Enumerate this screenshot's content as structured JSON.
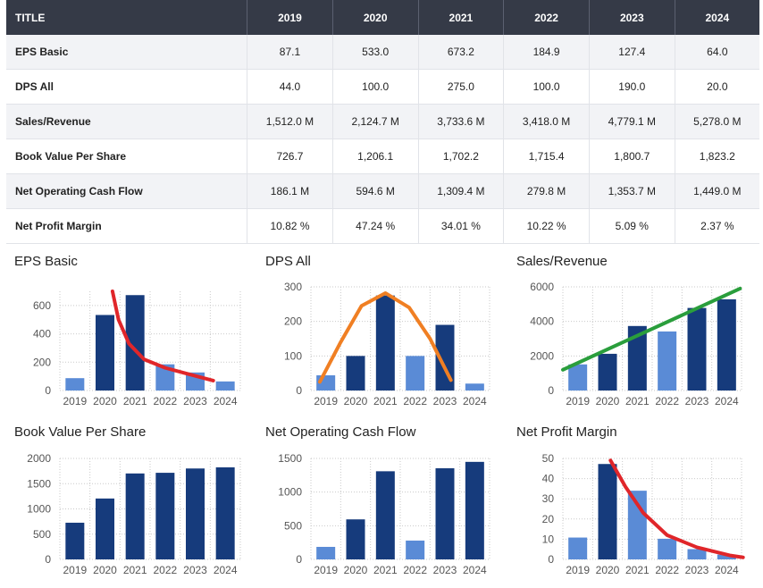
{
  "table": {
    "header": [
      "TITLE",
      "2019",
      "2020",
      "2021",
      "2022",
      "2023",
      "2024"
    ],
    "rows": [
      {
        "label": "EPS Basic",
        "cells": [
          "87.1",
          "533.0",
          "673.2",
          "184.9",
          "127.4",
          "64.0"
        ]
      },
      {
        "label": "DPS All",
        "cells": [
          "44.0",
          "100.0",
          "275.0",
          "100.0",
          "190.0",
          "20.0"
        ]
      },
      {
        "label": "Sales/Revenue",
        "cells": [
          "1,512.0 M",
          "2,124.7 M",
          "3,733.6 M",
          "3,418.0 M",
          "4,779.1 M",
          "5,278.0 M"
        ]
      },
      {
        "label": "Book Value Per Share",
        "cells": [
          "726.7",
          "1,206.1",
          "1,702.2",
          "1,715.4",
          "1,800.7",
          "1,823.2"
        ]
      },
      {
        "label": "Net Operating Cash Flow",
        "cells": [
          "186.1 M",
          "594.6 M",
          "1,309.4 M",
          "279.8 M",
          "1,353.7 M",
          "1,449.0 M"
        ]
      },
      {
        "label": "Net Profit Margin",
        "cells": [
          "10.82 %",
          "47.24 %",
          "34.01 %",
          "10.22 %",
          "5.09 %",
          "2.37 %"
        ]
      }
    ]
  },
  "colors": {
    "bar_dark": "#163b7c",
    "bar_light": "#5a8bd6",
    "grid": "#c9c9c9",
    "header_bg": "#353a47"
  },
  "chart_data": [
    {
      "type": "bar",
      "title": "EPS Basic",
      "categories": [
        "2019",
        "2020",
        "2021",
        "2022",
        "2023",
        "2024"
      ],
      "values": [
        87.1,
        533.0,
        673.2,
        184.9,
        127.4,
        64.0
      ],
      "bar_shades": [
        "light",
        "dark",
        "dark",
        "light",
        "light",
        "light"
      ],
      "yticks": [
        0,
        200,
        400,
        600
      ],
      "ylim": [
        0,
        700
      ],
      "overlay_curve": {
        "color": "#e0262a",
        "shape": "declining curve",
        "x": [
          2020.25,
          2020.45,
          2020.8,
          2021.3,
          2022.0,
          2022.7,
          2023.6
        ],
        "y": [
          700,
          500,
          330,
          220,
          160,
          120,
          70
        ]
      }
    },
    {
      "type": "bar",
      "title": "DPS All",
      "categories": [
        "2019",
        "2020",
        "2021",
        "2022",
        "2023",
        "2024"
      ],
      "values": [
        44.0,
        100.0,
        275.0,
        100.0,
        190.0,
        20.0
      ],
      "bar_shades": [
        "light",
        "dark",
        "dark",
        "light",
        "dark",
        "light"
      ],
      "yticks": [
        0,
        100,
        200,
        300
      ],
      "ylim": [
        0,
        300
      ],
      "overlay_curve": {
        "color": "#f07f23",
        "shape": "arch",
        "x": [
          -0.2,
          0.5,
          1.2,
          2.0,
          2.8,
          3.5,
          4.2
        ],
        "y": [
          25,
          140,
          245,
          282,
          240,
          150,
          30
        ]
      }
    },
    {
      "type": "bar",
      "title": "Sales/Revenue",
      "categories": [
        "2019",
        "2020",
        "2021",
        "2022",
        "2023",
        "2024"
      ],
      "values": [
        1512.0,
        2124.7,
        3733.6,
        3418.0,
        4779.1,
        5278.0
      ],
      "bar_shades": [
        "light",
        "dark",
        "dark",
        "light",
        "dark",
        "dark"
      ],
      "yticks": [
        0,
        2000,
        4000,
        6000
      ],
      "ylim": [
        0,
        6000
      ],
      "overlay_curve": {
        "color": "#2a9e3c",
        "shape": "rising line",
        "x": [
          -0.5,
          5.45
        ],
        "y": [
          1200,
          5900
        ]
      }
    },
    {
      "type": "bar",
      "title": "Book Value Per Share",
      "categories": [
        "2019",
        "2020",
        "2021",
        "2022",
        "2023",
        "2024"
      ],
      "values": [
        726.7,
        1206.1,
        1702.2,
        1715.4,
        1800.7,
        1823.2
      ],
      "bar_shades": [
        "dark",
        "dark",
        "dark",
        "dark",
        "dark",
        "dark"
      ],
      "yticks": [
        0,
        500,
        1000,
        1500,
        2000
      ],
      "ylim": [
        0,
        2000
      ]
    },
    {
      "type": "bar",
      "title": "Net Operating Cash Flow",
      "categories": [
        "2019",
        "2020",
        "2021",
        "2022",
        "2023",
        "2024"
      ],
      "values": [
        186.1,
        594.6,
        1309.4,
        279.8,
        1353.7,
        1449.0
      ],
      "bar_shades": [
        "light",
        "dark",
        "dark",
        "light",
        "dark",
        "dark"
      ],
      "yticks": [
        0,
        500,
        1000,
        1500
      ],
      "ylim": [
        0,
        1500
      ]
    },
    {
      "type": "bar",
      "title": "Net Profit Margin",
      "categories": [
        "2019",
        "2020",
        "2021",
        "2022",
        "2023",
        "2024"
      ],
      "values": [
        10.82,
        47.24,
        34.01,
        10.22,
        5.09,
        2.37
      ],
      "bar_shades": [
        "light",
        "dark",
        "light",
        "light",
        "light",
        "light"
      ],
      "yticks": [
        0,
        10,
        20,
        30,
        40,
        50
      ],
      "ylim": [
        0,
        50
      ],
      "overlay_curve": {
        "color": "#e0262a",
        "shape": "declining curve",
        "x": [
          1.1,
          1.6,
          2.2,
          3.0,
          4.0,
          5.1,
          5.55
        ],
        "y": [
          49,
          36,
          23,
          12,
          6,
          2,
          1
        ]
      }
    }
  ]
}
